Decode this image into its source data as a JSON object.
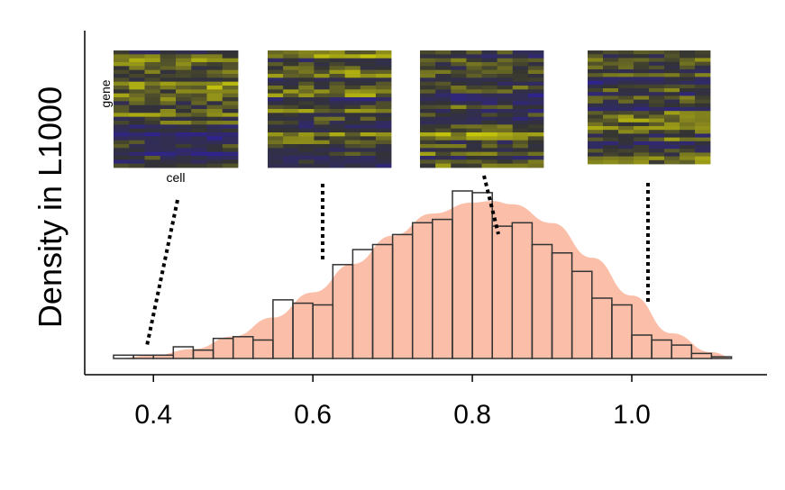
{
  "chart_data": {
    "type": "bar",
    "title": "",
    "xlabel": "",
    "ylabel": "Density in L1000",
    "xlim": [
      0.35,
      1.14
    ],
    "ylim": [
      0,
      1
    ],
    "xticks": [
      0.4,
      0.6,
      0.8,
      1.0
    ],
    "xtick_labels": [
      "0.4",
      "0.6",
      "0.8",
      "1.0"
    ],
    "bin_width": 0.025,
    "bins": [
      {
        "x0": 0.35,
        "x1": 0.375,
        "value": 0.02
      },
      {
        "x0": 0.375,
        "x1": 0.4,
        "value": 0.02
      },
      {
        "x0": 0.4,
        "x1": 0.425,
        "value": 0.02
      },
      {
        "x0": 0.425,
        "x1": 0.45,
        "value": 0.07
      },
      {
        "x0": 0.45,
        "x1": 0.475,
        "value": 0.05
      },
      {
        "x0": 0.475,
        "x1": 0.5,
        "value": 0.12
      },
      {
        "x0": 0.5,
        "x1": 0.525,
        "value": 0.13
      },
      {
        "x0": 0.525,
        "x1": 0.55,
        "value": 0.11
      },
      {
        "x0": 0.55,
        "x1": 0.575,
        "value": 0.35
      },
      {
        "x0": 0.575,
        "x1": 0.6,
        "value": 0.33
      },
      {
        "x0": 0.6,
        "x1": 0.625,
        "value": 0.32
      },
      {
        "x0": 0.625,
        "x1": 0.65,
        "value": 0.56
      },
      {
        "x0": 0.65,
        "x1": 0.675,
        "value": 0.65
      },
      {
        "x0": 0.675,
        "x1": 0.7,
        "value": 0.68
      },
      {
        "x0": 0.7,
        "x1": 0.725,
        "value": 0.74
      },
      {
        "x0": 0.725,
        "x1": 0.75,
        "value": 0.81
      },
      {
        "x0": 0.75,
        "x1": 0.775,
        "value": 0.83
      },
      {
        "x0": 0.775,
        "x1": 0.8,
        "value": 1.0
      },
      {
        "x0": 0.8,
        "x1": 0.825,
        "value": 0.99
      },
      {
        "x0": 0.825,
        "x1": 0.85,
        "value": 0.79
      },
      {
        "x0": 0.85,
        "x1": 0.875,
        "value": 0.81
      },
      {
        "x0": 0.875,
        "x1": 0.9,
        "value": 0.68
      },
      {
        "x0": 0.9,
        "x1": 0.925,
        "value": 0.63
      },
      {
        "x0": 0.925,
        "x1": 0.95,
        "value": 0.52
      },
      {
        "x0": 0.95,
        "x1": 0.975,
        "value": 0.36
      },
      {
        "x0": 0.975,
        "x1": 1.0,
        "value": 0.32
      },
      {
        "x0": 1.0,
        "x1": 1.025,
        "value": 0.14
      },
      {
        "x0": 1.025,
        "x1": 1.05,
        "value": 0.11
      },
      {
        "x0": 1.05,
        "x1": 1.075,
        "value": 0.08
      },
      {
        "x0": 1.075,
        "x1": 1.1,
        "value": 0.03
      },
      {
        "x0": 1.1,
        "x1": 1.125,
        "value": 0.01
      }
    ],
    "density_curve": {
      "x": [
        0.35,
        0.4,
        0.45,
        0.5,
        0.55,
        0.6,
        0.65,
        0.7,
        0.75,
        0.8,
        0.825,
        0.85,
        0.9,
        0.95,
        1.0,
        1.05,
        1.1,
        1.13
      ],
      "y": [
        0.0,
        0.02,
        0.06,
        0.14,
        0.26,
        0.42,
        0.6,
        0.78,
        0.92,
        0.99,
        1.0,
        0.98,
        0.86,
        0.64,
        0.4,
        0.16,
        0.04,
        0.0
      ],
      "color": "#f9a98c"
    },
    "colors": {
      "bar_outline": "#333333",
      "curve_fill": "#f9a98c",
      "heatmap_low": "#2e1f7a",
      "heatmap_mid": "#333333",
      "heatmap_high": "#f2f200"
    },
    "insets": [
      {
        "name": "heatmap-1",
        "x": 0.39,
        "row_label": "gene",
        "col_label": "cell"
      },
      {
        "name": "heatmap-2",
        "x": 0.62,
        "row_label": "",
        "col_label": ""
      },
      {
        "name": "heatmap-3",
        "x": 0.84,
        "row_label": "",
        "col_label": ""
      },
      {
        "name": "heatmap-4",
        "x": 1.03,
        "row_label": "",
        "col_label": ""
      }
    ]
  }
}
